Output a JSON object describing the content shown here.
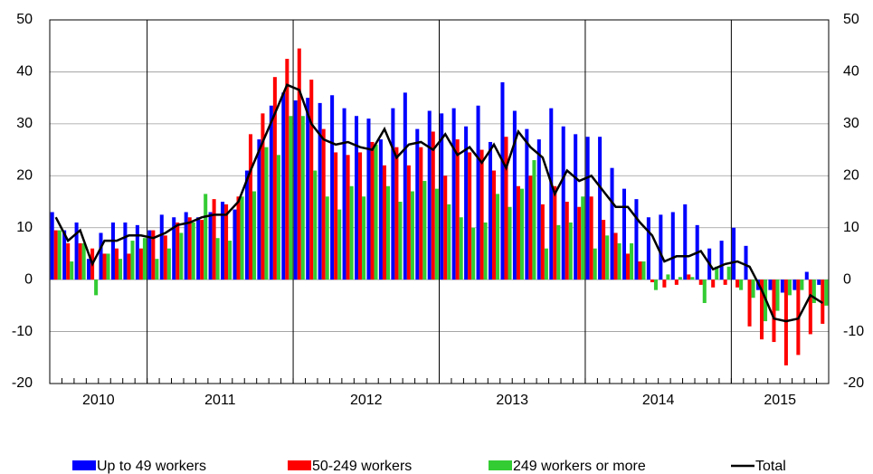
{
  "chart_data": {
    "type": "bar_line",
    "categories": [
      null,
      null,
      null,
      null,
      null,
      null,
      null,
      null,
      null,
      null,
      null,
      null,
      null,
      null,
      null,
      null,
      null,
      null,
      null,
      null,
      null,
      null,
      null,
      null,
      null,
      null,
      null,
      null,
      null,
      null,
      null,
      null,
      null,
      null,
      null,
      null,
      null,
      null,
      null,
      null,
      null,
      null,
      null,
      null,
      null,
      null,
      null,
      null,
      null,
      null,
      null,
      null,
      null,
      null,
      null,
      null,
      null,
      null,
      null,
      null,
      null,
      null,
      null,
      null
    ],
    "year_groups": [
      {
        "label": "2010",
        "count": 8
      },
      {
        "label": "2011",
        "count": 12
      },
      {
        "label": "2012",
        "count": 12
      },
      {
        "label": "2013",
        "count": 12
      },
      {
        "label": "2014",
        "count": 12
      },
      {
        "label": "2015",
        "count": 8
      }
    ],
    "series": [
      {
        "name": "Up to 49 workers",
        "color": "#0000ff",
        "kind": "bar",
        "values": [
          13,
          9.5,
          11,
          4,
          9,
          11,
          11,
          10.5,
          9.5,
          12.5,
          12,
          13,
          12,
          13,
          15,
          13.5,
          21,
          27,
          33.5,
          36,
          34.5,
          35,
          34,
          35.5,
          33,
          31.5,
          31,
          27,
          33,
          36,
          29,
          32.5,
          32,
          33,
          29.5,
          33.5,
          26.5,
          38,
          32.5,
          29,
          27,
          33,
          29.5,
          28,
          27.5,
          27.5,
          21.5,
          17.5,
          15.5,
          12,
          12.5,
          13,
          14.5,
          10.5,
          6,
          7.5,
          10,
          6.5,
          -2,
          -2,
          -2.5,
          -2,
          1.5,
          -1
        ]
      },
      {
        "name": "50-249 workers",
        "color": "#ff0000",
        "kind": "bar",
        "values": [
          9.5,
          7,
          7,
          6,
          5,
          6,
          5,
          6,
          9.5,
          8.5,
          11,
          12,
          11.5,
          15.5,
          14.5,
          16,
          28,
          32,
          39,
          42.5,
          44.5,
          38.5,
          29,
          24.5,
          24,
          24.5,
          26.5,
          22,
          25.5,
          22,
          25.5,
          28.5,
          20,
          27,
          24.5,
          25,
          21,
          27.5,
          18,
          20,
          14.5,
          18,
          15,
          14,
          16,
          11.5,
          9,
          5,
          3.5,
          -0.5,
          -1.5,
          -1,
          1,
          -1,
          -1.5,
          -1,
          -1.5,
          -9,
          -11.5,
          -12,
          -16.5,
          -14.5,
          -10.5,
          -8.5
        ]
      },
      {
        "name": "249 workers or more",
        "color": "#33cc33",
        "kind": "bar",
        "values": [
          9.5,
          3.5,
          7,
          -3,
          5,
          4,
          7.5,
          8,
          4,
          6,
          9,
          11,
          16.5,
          8,
          7.5,
          16,
          17,
          25.5,
          24,
          31.5,
          31.5,
          21,
          16,
          13.5,
          18,
          16,
          26,
          18,
          15,
          17,
          19,
          17.5,
          14.5,
          12,
          10,
          11,
          16.5,
          14,
          17.5,
          23,
          6,
          10.5,
          11,
          16,
          6,
          8.5,
          7,
          7,
          3.5,
          -2,
          1,
          0.5,
          0.5,
          -4.5,
          2.5,
          2.5,
          -2,
          -3.5,
          -8,
          -6,
          -3,
          -2,
          -4.5,
          -5
        ]
      },
      {
        "name": "Total",
        "color": "#000000",
        "kind": "line",
        "values": [
          12,
          7.5,
          9.5,
          3,
          7.5,
          7.5,
          8.5,
          8.5,
          8,
          9,
          10.5,
          11,
          12,
          12.5,
          12.5,
          15,
          21,
          26.5,
          32,
          37.5,
          36.5,
          30,
          27,
          26,
          26.5,
          25.5,
          25,
          29,
          23.5,
          26,
          26.5,
          25,
          28,
          24,
          25.5,
          22.5,
          26,
          21.5,
          28.5,
          25.5,
          23.5,
          16.5,
          21,
          19,
          20,
          17,
          14,
          14,
          11,
          8.5,
          3.5,
          4.5,
          4.5,
          5.5,
          2,
          3,
          3.5,
          2.5,
          -2,
          -7.5,
          -8,
          -7.5,
          -3,
          -4.5
        ]
      }
    ],
    "ylim": [
      -20,
      50
    ],
    "yticks": [
      -20,
      -10,
      0,
      10,
      20,
      30,
      40,
      50
    ],
    "y2lim": [
      -20,
      50
    ],
    "y2ticks": [
      -20,
      -10,
      0,
      10,
      20,
      30,
      40,
      50
    ],
    "grid": true
  }
}
